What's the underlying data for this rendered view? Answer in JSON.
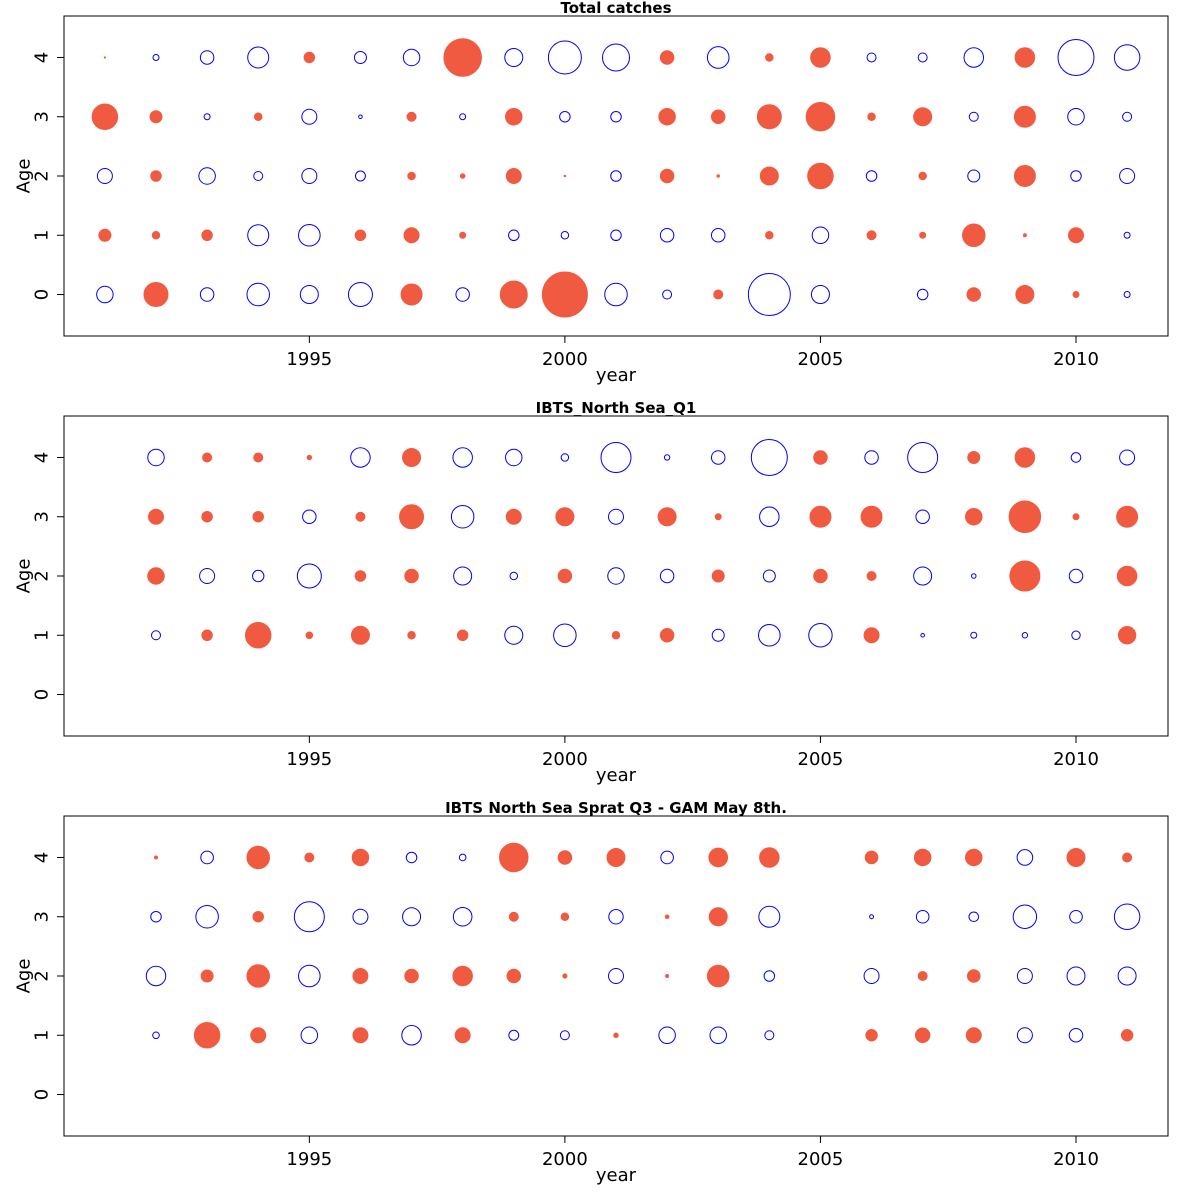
{
  "chart_data": [
    {
      "type": "scatter",
      "title": "Total catches",
      "xlabel": "year",
      "ylabel": "Age",
      "xlim": [
        1990.2,
        2011.8
      ],
      "ylim": [
        -0.7,
        4.7
      ],
      "xticks": [
        1995,
        2000,
        2005,
        2010
      ],
      "yticks": [
        0,
        1,
        2,
        3,
        4
      ],
      "years": [
        1991,
        1992,
        1993,
        1994,
        1995,
        1996,
        1997,
        1998,
        1999,
        2000,
        2001,
        2002,
        2003,
        2004,
        2005,
        2006,
        2007,
        2008,
        2009,
        2010,
        2011
      ],
      "ages": [
        0,
        1,
        2,
        3,
        4
      ],
      "positive_color": "#F05A40",
      "negative_color": "#0000FF",
      "residuals": {
        "0": [
          -0.55,
          0.8,
          -0.45,
          -0.75,
          -0.6,
          -0.8,
          0.7,
          -0.45,
          0.9,
          1.5,
          -0.75,
          -0.3,
          0.3,
          -1.4,
          -0.6,
          null,
          -0.35,
          0.45,
          0.6,
          0.2,
          -0.2
        ],
        "1": [
          0.4,
          0.25,
          0.35,
          -0.7,
          -0.72,
          0.35,
          0.5,
          0.2,
          -0.35,
          -0.25,
          -0.35,
          -0.45,
          -0.45,
          0.25,
          -0.55,
          0.3,
          0.2,
          0.75,
          0.1,
          0.5,
          -0.2
        ],
        "2": [
          -0.5,
          0.35,
          -0.55,
          -0.3,
          -0.5,
          -0.33,
          0.25,
          0.15,
          0.5,
          0.05,
          -0.35,
          0.45,
          0.08,
          0.6,
          0.85,
          -0.35,
          0.25,
          -0.4,
          0.7,
          -0.35,
          -0.5
        ],
        "3": [
          0.85,
          0.4,
          -0.2,
          0.25,
          -0.5,
          -0.12,
          0.3,
          -0.2,
          0.55,
          -0.35,
          -0.35,
          0.55,
          0.45,
          0.8,
          0.95,
          0.25,
          0.6,
          -0.3,
          0.7,
          -0.55,
          -0.3
        ],
        "4": [
          0.02,
          -0.2,
          -0.45,
          -0.7,
          0.35,
          -0.4,
          -0.55,
          1.25,
          -0.6,
          -1.1,
          -0.9,
          0.45,
          -0.72,
          0.25,
          0.65,
          -0.3,
          -0.3,
          -0.65,
          0.65,
          -1.2,
          -0.85
        ]
      }
    },
    {
      "type": "scatter",
      "title": "IBTS_North Sea_Q1",
      "xlabel": "year",
      "ylabel": "Age",
      "xlim": [
        1990.2,
        2011.8
      ],
      "ylim": [
        -0.7,
        4.7
      ],
      "xticks": [
        1995,
        2000,
        2005,
        2010
      ],
      "yticks": [
        0,
        1,
        2,
        3,
        4
      ],
      "years": [
        1992,
        1993,
        1994,
        1995,
        1996,
        1997,
        1998,
        1999,
        2000,
        2001,
        2002,
        2003,
        2004,
        2005,
        2006,
        2007,
        2008,
        2009,
        2010,
        2011
      ],
      "ages": [
        1,
        2,
        3,
        4
      ],
      "positive_color": "#F05A40",
      "negative_color": "#0000FF",
      "residuals": {
        "1": [
          -0.3,
          0.35,
          0.85,
          0.22,
          0.6,
          0.25,
          0.35,
          -0.6,
          -0.75,
          0.25,
          0.45,
          -0.4,
          -0.72,
          -0.78,
          0.5,
          -0.12,
          -0.2,
          -0.18,
          -0.28,
          0.58
        ],
        "2": [
          0.55,
          -0.5,
          -0.38,
          -0.8,
          0.35,
          0.45,
          -0.6,
          -0.25,
          0.45,
          -0.55,
          -0.45,
          0.4,
          -0.4,
          0.45,
          0.3,
          -0.6,
          -0.15,
          1.0,
          -0.45,
          0.65
        ],
        "3": [
          0.5,
          0.35,
          0.35,
          -0.45,
          0.3,
          0.8,
          -0.75,
          0.5,
          0.6,
          -0.5,
          0.6,
          0.2,
          -0.65,
          0.7,
          0.7,
          -0.45,
          0.55,
          1.05,
          0.2,
          0.7
        ],
        "4": [
          -0.55,
          0.3,
          0.3,
          0.15,
          -0.65,
          0.6,
          -0.65,
          -0.55,
          -0.25,
          -1.0,
          -0.18,
          -0.45,
          -1.2,
          0.45,
          -0.45,
          -1.0,
          0.4,
          0.65,
          -0.32,
          -0.5
        ]
      }
    },
    {
      "type": "scatter",
      "title": "IBTS North Sea Sprat Q3 - GAM May 8th.",
      "xlabel": "year",
      "ylabel": "Age",
      "xlim": [
        1990.2,
        2011.8
      ],
      "ylim": [
        -0.7,
        4.7
      ],
      "xticks": [
        1995,
        2000,
        2005,
        2010
      ],
      "yticks": [
        0,
        1,
        2,
        3,
        4
      ],
      "years": [
        1992,
        1993,
        1994,
        1995,
        1996,
        1997,
        1998,
        1999,
        2000,
        2001,
        2002,
        2003,
        2004,
        2006,
        2007,
        2008,
        2009,
        2010,
        2011
      ],
      "ages": [
        1,
        2,
        3,
        4
      ],
      "positive_color": "#F05A40",
      "negative_color": "#0000FF",
      "residuals": {
        "1": [
          -0.22,
          0.85,
          0.5,
          -0.55,
          0.5,
          -0.65,
          0.5,
          -0.33,
          -0.3,
          0.15,
          -0.55,
          -0.55,
          -0.3,
          0.38,
          0.48,
          0.5,
          -0.5,
          -0.45,
          0.38
        ],
        "2": [
          -0.65,
          0.4,
          0.75,
          -0.72,
          0.5,
          0.45,
          0.65,
          0.45,
          0.14,
          -0.5,
          0.1,
          0.72,
          -0.35,
          -0.5,
          0.3,
          0.42,
          -0.5,
          -0.6,
          -0.6
        ],
        "3": [
          -0.35,
          -0.75,
          0.35,
          -1.0,
          -0.5,
          -0.6,
          -0.62,
          0.3,
          0.25,
          -0.48,
          0.12,
          0.6,
          -0.7,
          -0.13,
          -0.42,
          -0.32,
          -0.78,
          -0.42,
          -0.85
        ],
        "4": [
          0.1,
          -0.42,
          0.75,
          0.3,
          0.55,
          -0.35,
          -0.22,
          0.95,
          0.45,
          0.6,
          -0.42,
          0.62,
          0.65,
          0.42,
          0.55,
          0.55,
          -0.52,
          0.6,
          0.3
        ]
      }
    }
  ]
}
